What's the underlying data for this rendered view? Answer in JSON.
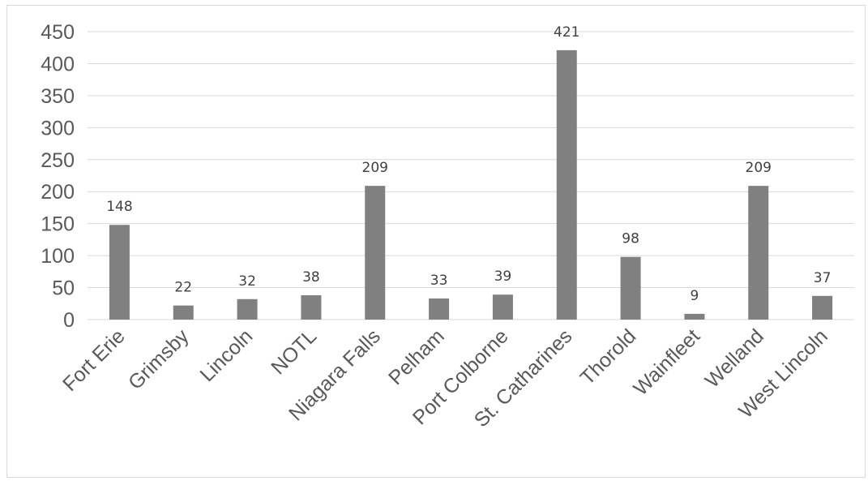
{
  "chart_data": {
    "type": "bar",
    "title": "",
    "xlabel": "",
    "ylabel": "",
    "categories": [
      "Fort Erie",
      "Grimsby",
      "Lincoln",
      "NOTL",
      "Niagara Falls",
      "Pelham",
      "Port Colborne",
      "St. Catharines",
      "Thorold",
      "Wainfleet",
      "Welland",
      "West Lincoln"
    ],
    "values": [
      148,
      22,
      32,
      38,
      209,
      33,
      39,
      421,
      98,
      9,
      209,
      37
    ],
    "data_labels": [
      "148",
      "22",
      "32",
      "38",
      "209",
      "33",
      "39",
      "421",
      "98",
      "9",
      "209",
      "37"
    ],
    "yticks": [
      "0",
      "50",
      "100",
      "150",
      "200",
      "250",
      "300",
      "350",
      "400",
      "450"
    ],
    "ylim": [
      0,
      450
    ],
    "grid": true,
    "legend": "none",
    "bar_color": "#808080",
    "grid_color": "#d9d9d9"
  }
}
